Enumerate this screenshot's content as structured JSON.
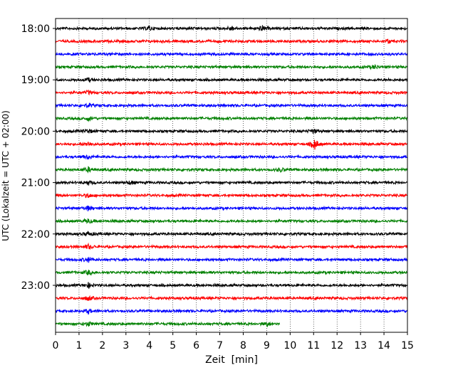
{
  "chart_data": {
    "type": "line",
    "title": "",
    "xlabel": "Zeit  [min]",
    "ylabel": "UTC (Lokalzeit = UTC + 02:00)",
    "xlim": [
      0,
      15
    ],
    "x_ticks": [
      "0",
      "1",
      "2",
      "3",
      "4",
      "5",
      "6",
      "7",
      "8",
      "9",
      "10",
      "11",
      "12",
      "13",
      "14",
      "15"
    ],
    "y_tick_labels": [
      "18:00",
      "19:00",
      "20:00",
      "21:00",
      "22:00",
      "23:00"
    ],
    "y_tick_rows": [
      0,
      4,
      8,
      12,
      16,
      20
    ],
    "grid": "vertical dotted",
    "series_colors": [
      "#000000",
      "#ff0000",
      "#0000ff",
      "#008000"
    ],
    "traces": [
      {
        "start": "18:00",
        "color": "#000000",
        "x_end": 15.0,
        "events": [
          {
            "x": 4.0,
            "amp": 1.3
          },
          {
            "x": 7.5,
            "amp": 1.4
          },
          {
            "x": 8.8,
            "amp": 1.6
          }
        ]
      },
      {
        "start": "18:15",
        "color": "#ff0000",
        "x_end": 15.0,
        "events": [
          {
            "x": 14.2,
            "amp": 1.1
          }
        ]
      },
      {
        "start": "18:30",
        "color": "#0000ff",
        "x_end": 15.0,
        "events": []
      },
      {
        "start": "18:45",
        "color": "#008000",
        "x_end": 15.0,
        "events": [
          {
            "x": 13.6,
            "amp": 1.2
          }
        ]
      },
      {
        "start": "19:00",
        "color": "#000000",
        "x_end": 15.0,
        "events": [
          {
            "x": 1.4,
            "amp": 1.1
          }
        ]
      },
      {
        "start": "19:15",
        "color": "#ff0000",
        "x_end": 15.0,
        "events": [
          {
            "x": 1.4,
            "amp": 1.0
          }
        ]
      },
      {
        "start": "19:30",
        "color": "#0000ff",
        "x_end": 15.0,
        "events": [
          {
            "x": 1.4,
            "amp": 1.2
          }
        ]
      },
      {
        "start": "19:45",
        "color": "#008000",
        "x_end": 15.0,
        "events": [
          {
            "x": 1.4,
            "amp": 1.2
          }
        ]
      },
      {
        "start": "20:00",
        "color": "#000000",
        "x_end": 15.0,
        "events": [
          {
            "x": 1.4,
            "amp": 1.3
          },
          {
            "x": 11.0,
            "amp": 1.2
          }
        ]
      },
      {
        "start": "20:15",
        "color": "#ff0000",
        "x_end": 15.0,
        "events": [
          {
            "x": 1.4,
            "amp": 1.3
          },
          {
            "x": 11.05,
            "amp": 3.2
          }
        ]
      },
      {
        "start": "20:30",
        "color": "#0000ff",
        "x_end": 15.0,
        "events": [
          {
            "x": 1.4,
            "amp": 1.3
          }
        ]
      },
      {
        "start": "20:45",
        "color": "#008000",
        "x_end": 15.0,
        "events": [
          {
            "x": 1.4,
            "amp": 1.3
          },
          {
            "x": 9.6,
            "amp": 1.1
          }
        ]
      },
      {
        "start": "21:00",
        "color": "#000000",
        "x_end": 15.0,
        "events": [
          {
            "x": 1.4,
            "amp": 1.3
          },
          {
            "x": 3.2,
            "amp": 1.1
          }
        ]
      },
      {
        "start": "21:15",
        "color": "#ff0000",
        "x_end": 15.0,
        "events": [
          {
            "x": 1.4,
            "amp": 1.3
          }
        ]
      },
      {
        "start": "21:30",
        "color": "#0000ff",
        "x_end": 15.0,
        "events": [
          {
            "x": 1.4,
            "amp": 1.4
          }
        ]
      },
      {
        "start": "21:45",
        "color": "#008000",
        "x_end": 15.0,
        "events": [
          {
            "x": 1.4,
            "amp": 1.3
          }
        ]
      },
      {
        "start": "22:00",
        "color": "#000000",
        "x_end": 15.0,
        "events": [
          {
            "x": 1.4,
            "amp": 1.4
          }
        ]
      },
      {
        "start": "22:15",
        "color": "#ff0000",
        "x_end": 15.0,
        "events": [
          {
            "x": 1.4,
            "amp": 1.4
          }
        ]
      },
      {
        "start": "22:30",
        "color": "#0000ff",
        "x_end": 15.0,
        "events": [
          {
            "x": 1.4,
            "amp": 1.4
          }
        ]
      },
      {
        "start": "22:45",
        "color": "#008000",
        "x_end": 15.0,
        "events": [
          {
            "x": 1.4,
            "amp": 1.3
          }
        ]
      },
      {
        "start": "23:00",
        "color": "#000000",
        "x_end": 15.0,
        "events": [
          {
            "x": 1.4,
            "amp": 1.5
          }
        ]
      },
      {
        "start": "23:15",
        "color": "#ff0000",
        "x_end": 15.0,
        "events": [
          {
            "x": 1.4,
            "amp": 1.4
          }
        ]
      },
      {
        "start": "23:30",
        "color": "#0000ff",
        "x_end": 15.0,
        "events": [
          {
            "x": 1.4,
            "amp": 1.3
          }
        ]
      },
      {
        "start": "23:45",
        "color": "#008000",
        "x_end": 9.55,
        "events": [
          {
            "x": 1.4,
            "amp": 1.3
          },
          {
            "x": 9.0,
            "amp": 1.2
          }
        ]
      }
    ]
  }
}
